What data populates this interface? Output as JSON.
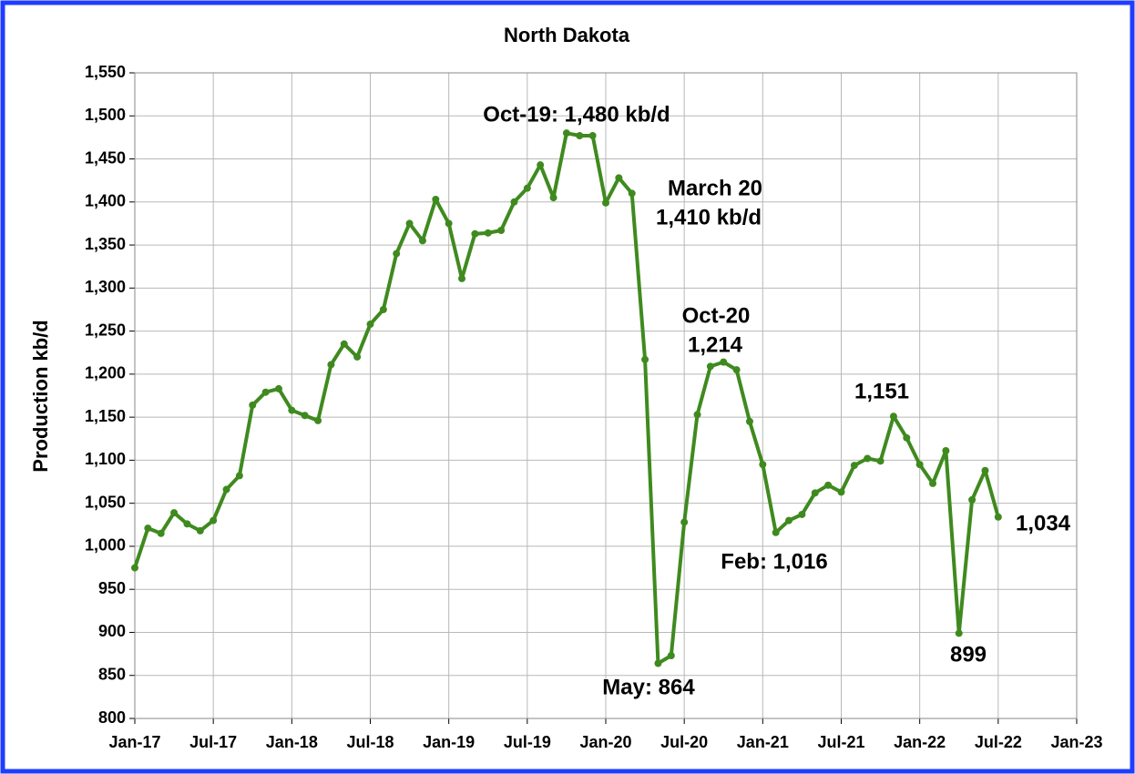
{
  "chart_data": {
    "type": "line",
    "title": "North Dakota",
    "y_label": "Production kb/d",
    "categories": [
      "Jan-17",
      null,
      null,
      null,
      null,
      null,
      "Jul-17",
      null,
      null,
      null,
      null,
      null,
      "Jan-18",
      null,
      null,
      null,
      null,
      null,
      "Jul-18",
      null,
      null,
      null,
      null,
      null,
      "Jan-19",
      null,
      null,
      null,
      null,
      null,
      "Jul-19",
      null,
      null,
      null,
      null,
      null,
      "Jan-20",
      null,
      null,
      null,
      null,
      null,
      "Jul-20",
      null,
      null,
      null,
      null,
      null,
      "Jan-21",
      null,
      null,
      null,
      null,
      null,
      "Jul-21",
      null,
      null,
      null,
      null,
      null,
      "Jan-22",
      null,
      null,
      null,
      null,
      null,
      "Jul-22",
      null,
      null,
      null,
      null,
      null,
      "Jan-23"
    ],
    "series": [
      {
        "color": "#3f8a1f",
        "values": [
          975,
          1021,
          1015,
          1039,
          1026,
          1018,
          1030,
          1066,
          1082,
          1164,
          1179,
          1183,
          1158,
          1152,
          1146,
          1211,
          1235,
          1220,
          1258,
          1275,
          1340,
          1375,
          1355,
          1403,
          1375,
          1311,
          1363,
          1364,
          1367,
          1400,
          1416,
          1443,
          1405,
          1480,
          1477,
          1477,
          1399,
          1428,
          1410,
          1217,
          864,
          873,
          1028,
          1153,
          1209,
          1214,
          1205,
          1145,
          1095,
          1016,
          1030,
          1037,
          1062,
          1071,
          1063,
          1094,
          1102,
          1099,
          1151,
          1126,
          1095,
          1073,
          1111,
          899,
          1054,
          1088,
          1034,
          null,
          null,
          null,
          null,
          null,
          null
        ]
      }
    ],
    "ylim": [
      800,
      1550
    ],
    "yticks": [
      800,
      850,
      900,
      950,
      {
        "value": 1000,
        "label": "1,000"
      },
      {
        "value": 1050,
        "label": "1,050"
      },
      {
        "value": 1100,
        "label": "1,100"
      },
      {
        "value": 1150,
        "label": "1,150"
      },
      {
        "value": 1200,
        "label": "1,200"
      },
      {
        "value": 1250,
        "label": "1,250"
      },
      {
        "value": 1300,
        "label": "1,300"
      },
      {
        "value": 1350,
        "label": "1,350"
      },
      {
        "value": 1400,
        "label": "1,400"
      },
      {
        "value": 1450,
        "label": "1,450"
      },
      {
        "value": 1500,
        "label": "1,500"
      },
      {
        "value": 1550,
        "label": "1,550"
      }
    ],
    "grid": true,
    "annotations": [
      "Oct-19: 1,480 kb/d",
      "March 20",
      "1,410 kb/d",
      "Oct-20",
      "1,214",
      "1,151",
      "Feb: 1,016",
      "May: 864",
      "899",
      "1,034"
    ]
  }
}
